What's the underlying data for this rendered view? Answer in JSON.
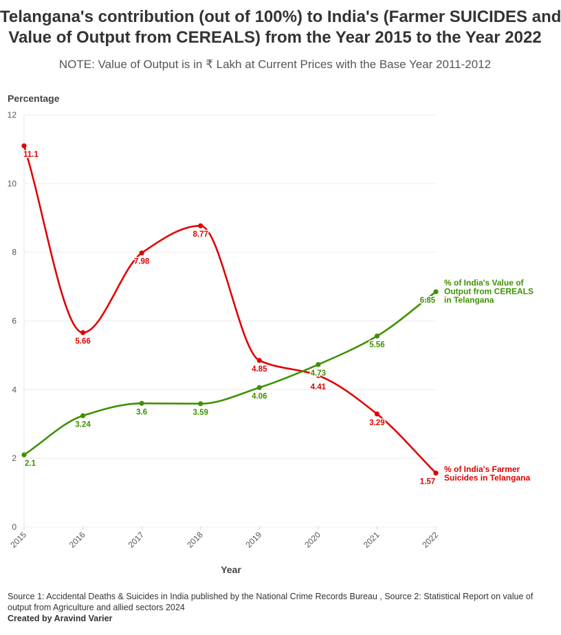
{
  "title_lines": [
    "Telangana's contribution (out of 100%) to India's (Farmer SUICIDES and",
    "Value of Output from CEREALS) from the Year 2015 to the Year 2022"
  ],
  "subtitle": "NOTE: Value of Output is in ₹ Lakh at Current Prices with the Base Year 2011-2012",
  "chart_data": {
    "type": "line",
    "ylabel": "Percentage",
    "xlabel": "Year",
    "ylim": [
      0,
      12
    ],
    "y_ticks": [
      "0",
      "2",
      "4",
      "6",
      "8",
      "10",
      "12"
    ],
    "categories": [
      "2015",
      "2016",
      "2017",
      "2018",
      "2019",
      "2020",
      "2021",
      "2022"
    ],
    "series": [
      {
        "name": "% of India's Farmer Suicides in Telangana",
        "name_lines": [
          "% of India's Farmer",
          "Suicides in Telangana"
        ],
        "color": "#e00000",
        "values": [
          11.1,
          5.66,
          7.98,
          8.77,
          4.85,
          4.41,
          3.29,
          1.57
        ],
        "labels": [
          "11.1",
          "5.66",
          "7.98",
          "8.77",
          "4.85",
          "4.41",
          "3.29",
          "1.57"
        ]
      },
      {
        "name": "% of India's Value of Output from CEREALS in Telangana",
        "name_lines": [
          "% of India's Value of",
          "Output from CEREALS",
          "in Telangana"
        ],
        "color": "#3d9100",
        "values": [
          2.1,
          3.24,
          3.6,
          3.59,
          4.06,
          4.73,
          5.56,
          6.85
        ],
        "labels": [
          "2.1",
          "3.24",
          "3.6",
          "3.59",
          "4.06",
          "4.73",
          "5.56",
          "6.85"
        ]
      }
    ]
  },
  "footer": {
    "source": "Source 1: Accidental Deaths & Suicides in India published by the National Crime Records Bureau , Source 2: Statistical Report on value of output from Agriculture and allied sectors 2024",
    "credit": "Created by Aravind Varier"
  }
}
